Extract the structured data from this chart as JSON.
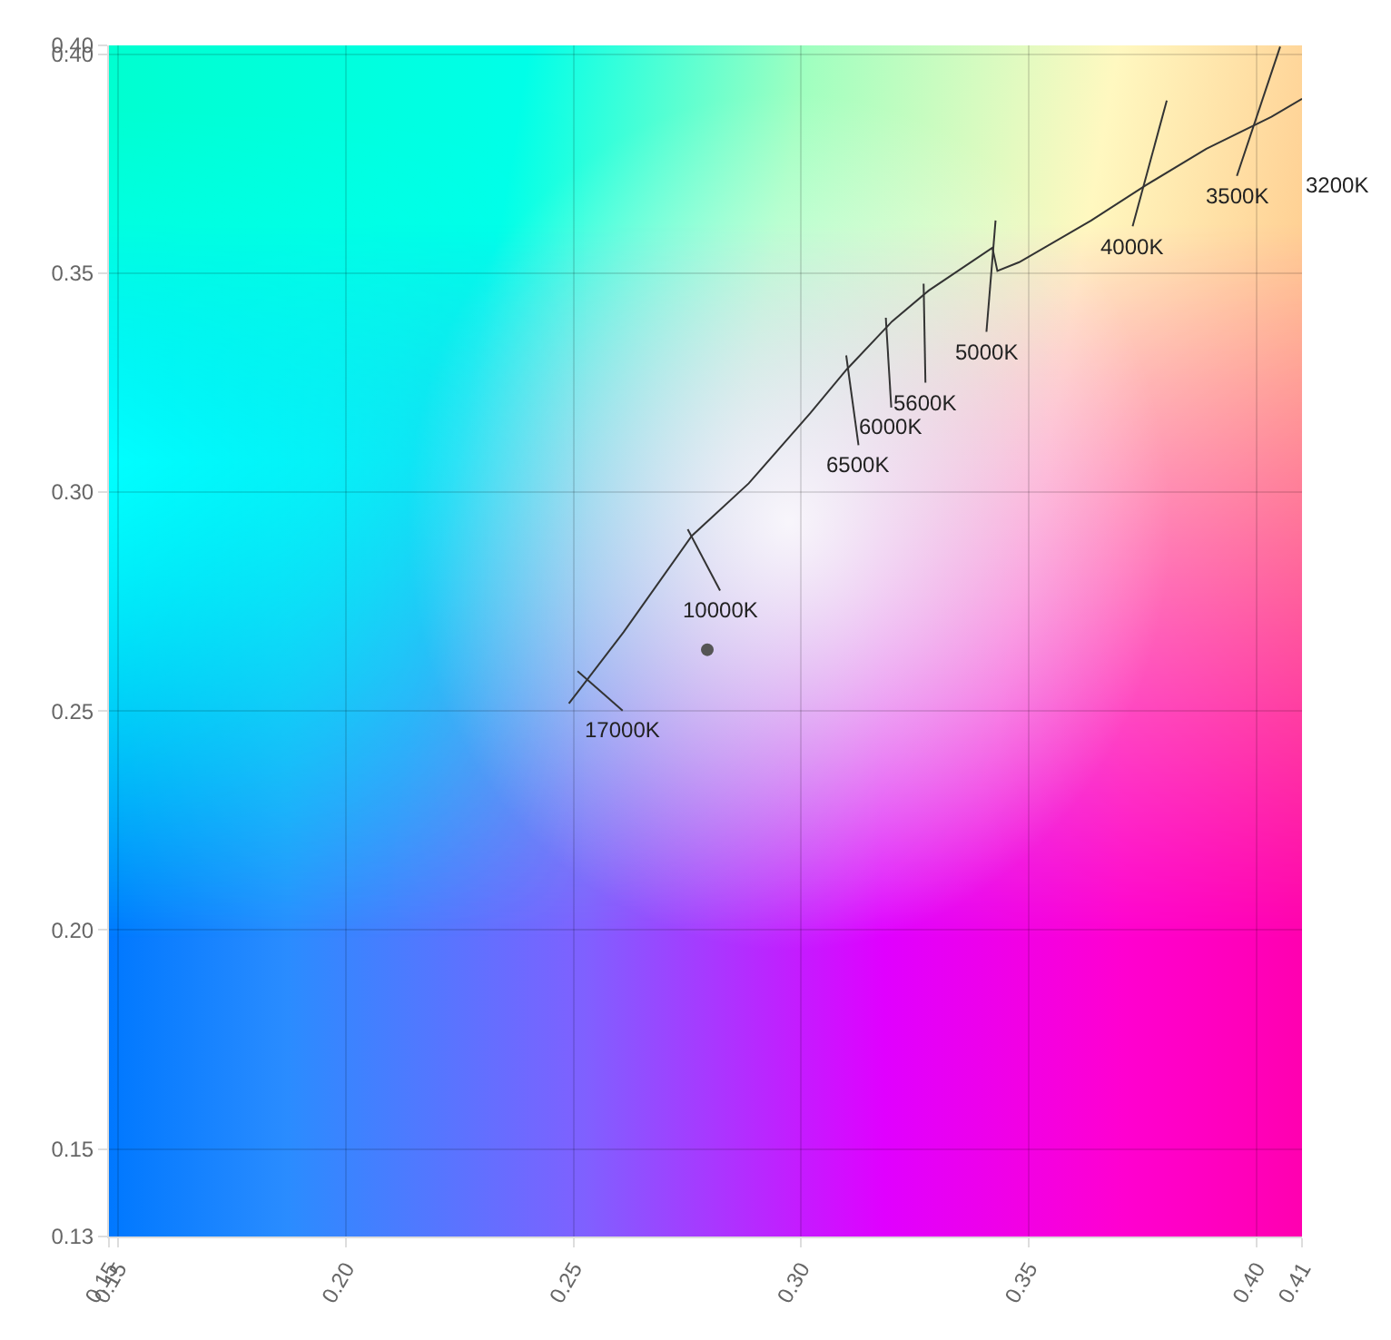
{
  "chart_data": {
    "type": "line",
    "xlim": [
      0.148,
      0.41
    ],
    "ylim": [
      0.13,
      0.402
    ],
    "xticks": [
      {
        "value": 0.148,
        "label": "0.15"
      },
      {
        "value": 0.15,
        "label": "0.15"
      },
      {
        "value": 0.2,
        "label": "0.20"
      },
      {
        "value": 0.25,
        "label": "0.25"
      },
      {
        "value": 0.3,
        "label": "0.30"
      },
      {
        "value": 0.35,
        "label": "0.35"
      },
      {
        "value": 0.4,
        "label": "0.40"
      },
      0.41
    ],
    "yticks": [
      0.13,
      {
        "value": 0.15,
        "label": "0.15"
      },
      {
        "value": 0.2,
        "label": "0.20"
      },
      {
        "value": 0.25,
        "label": "0.25"
      },
      {
        "value": 0.3,
        "label": "0.30"
      },
      {
        "value": 0.35,
        "label": "0.35"
      },
      {
        "value": 0.4,
        "label": "0.40"
      },
      {
        "value": 0.402,
        "label": "0.40"
      }
    ],
    "grid": true,
    "marker": "none",
    "line_style": "solid",
    "series": [
      {
        "color": "#333333",
        "x": [
          0.249,
          0.261,
          0.276,
          0.2885,
          0.302,
          0.31,
          0.32,
          0.328,
          0.342,
          0.3431,
          0.3479,
          0.3637,
          0.3756,
          0.389,
          0.4033,
          0.41
        ],
        "values": [
          0.2517,
          0.268,
          0.29,
          0.302,
          0.318,
          0.328,
          0.339,
          0.346,
          0.3558,
          0.3505,
          0.3525,
          0.362,
          0.37,
          0.3784,
          0.3857,
          0.3898
        ]
      },
      {
        "color": "#333333",
        "x": [
          0.2509,
          0.2608
        ],
        "values": [
          0.2591,
          0.2501
        ]
      },
      {
        "color": "#333333",
        "x": [
          0.2751,
          0.2822
        ],
        "values": [
          0.2915,
          0.2775
        ]
      },
      {
        "color": "#333333",
        "x": [
          0.3099,
          0.3126
        ],
        "values": [
          0.3312,
          0.3107
        ]
      },
      {
        "color": "#333333",
        "x": [
          0.3186,
          0.3198
        ],
        "values": [
          0.3398,
          0.3193
        ]
      },
      {
        "color": "#333333",
        "x": [
          0.3269,
          0.3273
        ],
        "values": [
          0.3476,
          0.325
        ]
      },
      {
        "color": "#333333",
        "x": [
          0.3427,
          0.3407
        ],
        "values": [
          0.362,
          0.3366
        ]
      },
      {
        "color": "#333333",
        "x": [
          0.3803,
          0.3728
        ],
        "values": [
          0.3894,
          0.3607
        ]
      },
      {
        "color": "#333333",
        "x": [
          0.4052,
          0.3957
        ],
        "values": [
          0.4017,
          0.3722
        ]
      },
      {
        "type": "scatter",
        "marker": "circle",
        "color": "#555555",
        "x": [
          0.2794
        ],
        "values": [
          0.264
        ]
      }
    ],
    "annotations": [
      {
        "text": "17000K",
        "x": 0.2608,
        "y": 0.2501
      },
      {
        "text": "10000K",
        "x": 0.2822,
        "y": 0.2775
      },
      {
        "text": "6500K",
        "x": 0.3126,
        "y": 0.3107
      },
      {
        "text": "6000K",
        "x": 0.3198,
        "y": 0.3193
      },
      {
        "text": "5600K",
        "x": 0.3273,
        "y": 0.325
      },
      {
        "text": "5000K",
        "x": 0.3407,
        "y": 0.3366
      },
      {
        "text": "4000K",
        "x": 0.3728,
        "y": 0.3607
      },
      {
        "text": "3500K",
        "x": 0.3957,
        "y": 0.3722
      },
      "3200K"
    ]
  }
}
